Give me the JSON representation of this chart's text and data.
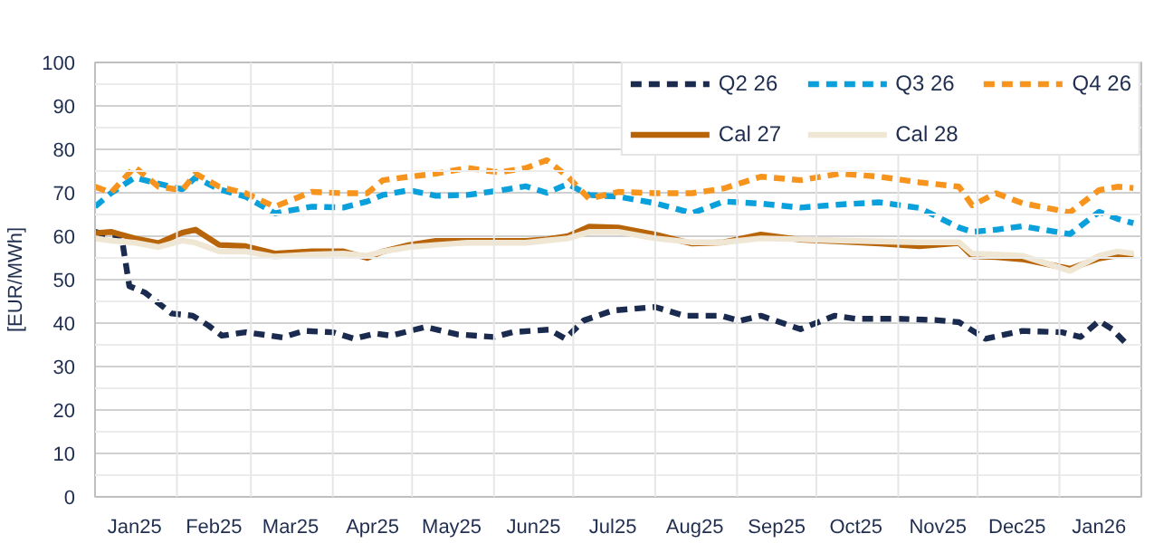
{
  "chart_data": {
    "type": "line",
    "ylabel": "[EUR/MWh]",
    "xlim": [
      "2025-01-01",
      "2026-02-01"
    ],
    "ylim": [
      0,
      100
    ],
    "yticks": [
      0,
      10,
      20,
      30,
      40,
      50,
      60,
      70,
      80,
      90,
      100
    ],
    "xticks": [
      {
        "value": "2025-01-16",
        "label": "Jan25"
      },
      {
        "value": "2025-02-15",
        "label": "Feb25"
      },
      {
        "value": "2025-03-16",
        "label": "Mar25"
      },
      {
        "value": "2025-04-16",
        "label": "Apr25"
      },
      {
        "value": "2025-05-16",
        "label": "May25"
      },
      {
        "value": "2025-06-16",
        "label": "Jun25"
      },
      {
        "value": "2025-07-16",
        "label": "Jul25"
      },
      {
        "value": "2025-08-16",
        "label": "Aug25"
      },
      {
        "value": "2025-09-16",
        "label": "Sep25"
      },
      {
        "value": "2025-10-16",
        "label": "Oct25"
      },
      {
        "value": "2025-11-16",
        "label": "Nov25"
      },
      {
        "value": "2025-12-16",
        "label": "Dec25"
      },
      {
        "value": "2026-01-16",
        "label": "Jan26"
      }
    ],
    "grid": true,
    "legend": "top right",
    "marker": "none",
    "x": [
      "2025-01-01",
      "2025-01-07",
      "2025-01-16",
      "2025-01-25",
      "2025-02-03",
      "2025-02-08",
      "2025-02-17",
      "2025-02-27",
      "2025-03-10",
      "2025-03-24",
      "2025-04-05",
      "2025-04-14",
      "2025-04-20",
      "2025-04-30",
      "2025-05-10",
      "2025-05-22",
      "2025-06-03",
      "2025-06-13",
      "2025-06-21",
      "2025-06-29",
      "2025-07-07",
      "2025-07-18",
      "2025-08-01",
      "2025-08-15",
      "2025-08-27",
      "2025-09-10",
      "2025-09-25",
      "2025-10-10",
      "2025-10-25",
      "2025-11-09",
      "2025-11-24",
      "2025-11-29",
      "2025-12-08",
      "2025-12-18",
      "2026-01-05",
      "2026-01-16",
      "2026-01-23",
      "2026-01-29"
    ],
    "series": [
      {
        "name": "Q2 26",
        "color": "#1a2b4f",
        "line_style": "dashed",
        "x": [
          "2025-01-01",
          "2025-01-07",
          "2025-01-11",
          "2025-01-14",
          "2025-01-20",
          "2025-01-30",
          "2025-02-07",
          "2025-02-13",
          "2025-02-18",
          "2025-02-27",
          "2025-03-13",
          "2025-03-21",
          "2025-04-01",
          "2025-04-09",
          "2025-04-17",
          "2025-04-23",
          "2025-05-06",
          "2025-05-18",
          "2025-06-01",
          "2025-06-08",
          "2025-06-22",
          "2025-06-28",
          "2025-07-05",
          "2025-07-16",
          "2025-08-01",
          "2025-08-12",
          "2025-08-26",
          "2025-09-02",
          "2025-09-10",
          "2025-09-25",
          "2025-10-08",
          "2025-10-16",
          "2025-11-01",
          "2025-11-15",
          "2025-11-24",
          "2025-12-04",
          "2025-12-18",
          "2026-01-02",
          "2026-01-09",
          "2026-01-16",
          "2026-01-21",
          "2026-01-27"
        ],
        "values": [
          61,
          60,
          60,
          48.5,
          47,
          42.2,
          41.7,
          39.4,
          37.1,
          37.9,
          36.7,
          38.2,
          37.9,
          36.4,
          37.6,
          37.1,
          39.1,
          37.4,
          36.8,
          37.9,
          38.5,
          36.4,
          40.6,
          42.9,
          43.7,
          41.7,
          41.7,
          40.5,
          41.7,
          38.6,
          41.7,
          41,
          41,
          40.7,
          40.2,
          36.4,
          38.2,
          37.9,
          36.8,
          40.5,
          38.6,
          34.8
        ]
      },
      {
        "name": "Q3 26",
        "color": "#0aa0dc",
        "line_style": "dashed",
        "values": [
          66.8,
          69.9,
          73.5,
          72.1,
          70.8,
          73.5,
          70.8,
          69.1,
          65.3,
          66.8,
          66.6,
          68,
          69.5,
          70.6,
          69.3,
          69.5,
          70.5,
          71.5,
          70,
          72,
          69.5,
          69.1,
          67.6,
          65.3,
          68,
          67.5,
          66.6,
          67.3,
          67.8,
          66.5,
          62,
          61,
          61.5,
          62.3,
          60.5,
          65.6,
          64,
          63
        ]
      },
      {
        "name": "Q4 26",
        "color": "#f7941d",
        "line_style": "dashed",
        "values": [
          71.4,
          70,
          75.9,
          71.4,
          70.6,
          74.4,
          71.4,
          69.9,
          66.8,
          70.2,
          69.9,
          69.9,
          72.9,
          73.7,
          74.4,
          75.7,
          74.7,
          75.7,
          77.5,
          73.7,
          68.6,
          70.2,
          69.9,
          69.9,
          71,
          73.7,
          72.9,
          74.4,
          73.7,
          72.4,
          71.4,
          67.1,
          69.9,
          67.6,
          65.5,
          70.6,
          71.4,
          71.1
        ]
      },
      {
        "name": "Cal 27",
        "color": "#b8650a",
        "line_style": "solid",
        "values": [
          60.7,
          61,
          59.5,
          58.4,
          60.8,
          61.5,
          58,
          57.7,
          56,
          56.5,
          56.5,
          55,
          56.5,
          58,
          58.9,
          58.9,
          58.9,
          58.9,
          59.3,
          60,
          62.2,
          62,
          60.4,
          58.3,
          58.6,
          60.4,
          59.2,
          58.8,
          58.3,
          57.7,
          58.4,
          55.4,
          55.2,
          54.7,
          52.5,
          54.9,
          55.6,
          55.7
        ]
      },
      {
        "name": "Cal 28",
        "color": "#f0e6d4",
        "line_style": "solid",
        "values": [
          59.5,
          59,
          58.5,
          57.5,
          59,
          58.5,
          56.5,
          56.5,
          55.3,
          55.8,
          56,
          55.5,
          56.5,
          57.5,
          58,
          58.5,
          58.5,
          58.5,
          59,
          59.5,
          61,
          61,
          59.5,
          58.6,
          58.6,
          59.5,
          59.3,
          59,
          58.8,
          58.6,
          58.6,
          56,
          55.8,
          55.5,
          52,
          55.5,
          56.5,
          56
        ]
      }
    ]
  }
}
